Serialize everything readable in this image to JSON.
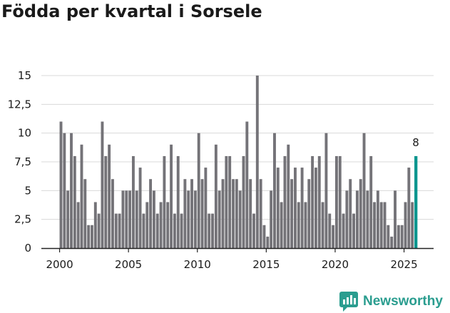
{
  "title": "Födda per kvartal i Sorsele",
  "brand": {
    "name": "Newsworthy",
    "icon": "newsworthy-logo-icon",
    "color": "#2a9d8f"
  },
  "colors": {
    "bar": "#747378",
    "highlight": "#08958e",
    "axis": "#222222",
    "grid": "#d8d8d8"
  },
  "chart_data": {
    "type": "bar",
    "title": "Födda per kvartal i Sorsele",
    "xlabel": "",
    "ylabel": "",
    "ylim": [
      0,
      15
    ],
    "yticks": [
      0,
      2.5,
      5,
      7.5,
      10,
      12.5,
      15
    ],
    "ytick_labels": [
      "0",
      "2,5",
      "5",
      "7,5",
      "10",
      "12,5",
      "15"
    ],
    "xticks": [
      2000,
      2005,
      2010,
      2015,
      2020,
      2025
    ],
    "xtick_labels": [
      "2000",
      "2005",
      "2010",
      "2015",
      "2020",
      "2025"
    ],
    "start": {
      "year": 2000,
      "quarter": 1
    },
    "values": [
      11,
      10,
      5,
      10,
      8,
      4,
      9,
      6,
      2,
      2,
      4,
      3,
      11,
      8,
      9,
      6,
      3,
      3,
      5,
      5,
      5,
      8,
      5,
      7,
      3,
      4,
      6,
      5,
      3,
      4,
      8,
      4,
      9,
      3,
      8,
      3,
      6,
      5,
      6,
      5,
      10,
      6,
      7,
      3,
      3,
      9,
      5,
      6,
      8,
      8,
      6,
      6,
      5,
      8,
      11,
      6,
      3,
      15,
      6,
      2,
      1,
      5,
      10,
      7,
      4,
      8,
      9,
      6,
      7,
      4,
      7,
      4,
      6,
      8,
      7,
      8,
      4,
      10,
      3,
      2,
      8,
      8,
      3,
      5,
      6,
      3,
      5,
      6,
      10,
      5,
      8,
      4,
      5,
      4,
      4,
      2,
      1,
      5,
      2,
      2,
      4,
      7,
      4,
      8
    ],
    "highlight_last": true,
    "last_label": "8"
  }
}
